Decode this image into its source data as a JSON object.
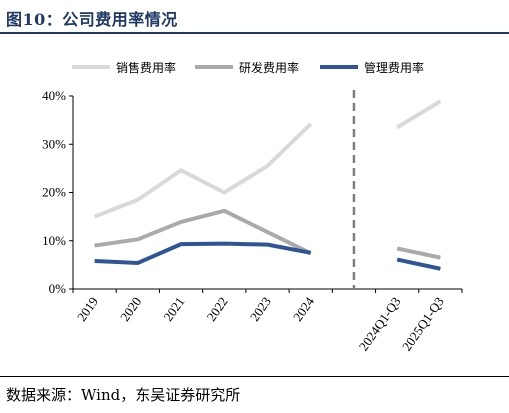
{
  "figure": {
    "title": "图10：公司费用率情况",
    "source": "数据来源：Wind，东吴证券研究所"
  },
  "chart_data": {
    "type": "line",
    "categories": [
      "2019",
      "2020",
      "2021",
      "2022",
      "2023",
      "2024",
      "",
      "2024Q1-Q3",
      "2025Q1-Q3"
    ],
    "ylim": [
      0,
      40
    ],
    "yticks": [
      "0%",
      "10%",
      "20%",
      "30%",
      "40%"
    ],
    "yticks_values": [
      0,
      10,
      20,
      30,
      40
    ],
    "grid": false,
    "legend": "top",
    "separator_after_index": 6,
    "series": [
      {
        "name": "销售费用率",
        "color": "#d9d9d9",
        "values": [
          15.0,
          18.5,
          24.6,
          20.0,
          25.5,
          34.2,
          null,
          33.5,
          38.9
        ]
      },
      {
        "name": "研发费用率",
        "color": "#aaaaaa",
        "values": [
          9.0,
          10.3,
          13.9,
          16.2,
          11.8,
          7.4,
          null,
          8.4,
          6.5
        ]
      },
      {
        "name": "管理费用率",
        "color": "#2f5597",
        "values": [
          5.8,
          5.4,
          9.3,
          9.4,
          9.2,
          7.5,
          null,
          6.1,
          4.2
        ]
      }
    ]
  }
}
